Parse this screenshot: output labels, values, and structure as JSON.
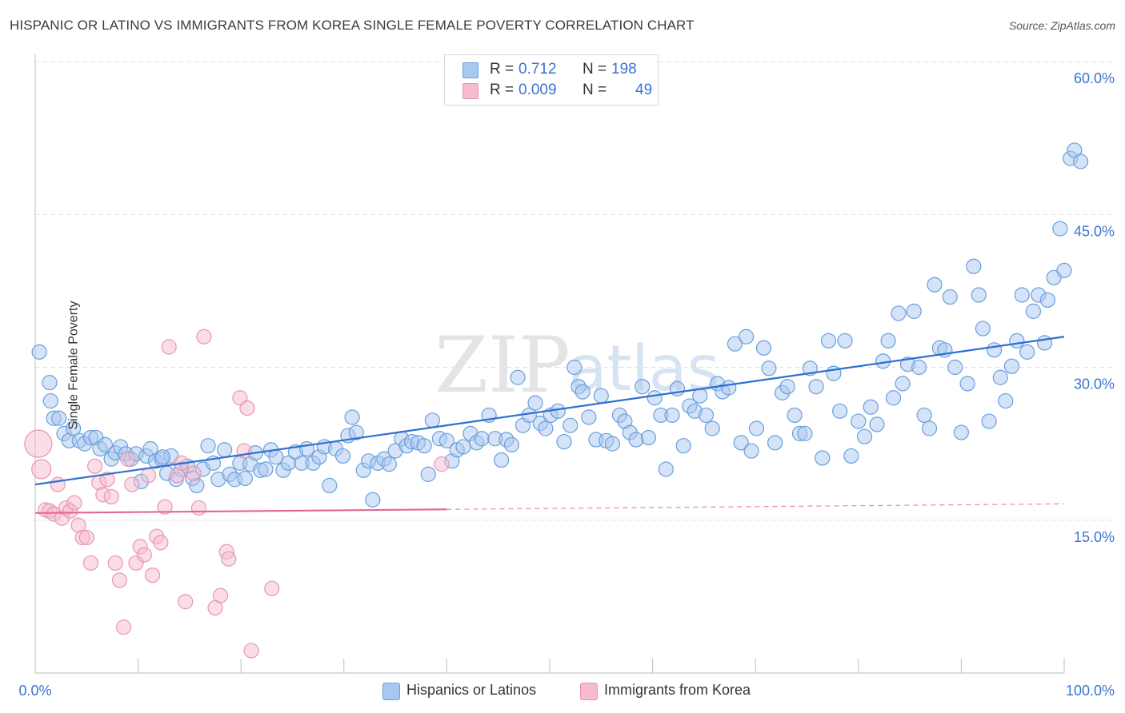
{
  "header": {
    "title": "HISPANIC OR LATINO VS IMMIGRANTS FROM KOREA SINGLE FEMALE POVERTY CORRELATION CHART",
    "source": "Source: ZipAtlas.com"
  },
  "watermark": {
    "zip": "ZIP",
    "atlas": "atlas"
  },
  "colors": {
    "blue_fill": "#a9c8ef",
    "blue_stroke": "#6a9fdc",
    "blue_line": "#2f6fd0",
    "pink_fill": "#f6bccd",
    "pink_stroke": "#e896b0",
    "pink_line": "#e5668f",
    "axis_text": "#3a74d0",
    "grid": "#dcdcdc"
  },
  "legend_top": {
    "rows": [
      {
        "r_label": "R =",
        "r_value": "0.712",
        "n_label": "N =",
        "n_value": "198"
      },
      {
        "r_label": "R =",
        "r_value": "0.009",
        "n_label": "N =",
        "n_value": "49"
      }
    ]
  },
  "legend_bottom": {
    "items": [
      {
        "label": "Hispanics or Latinos"
      },
      {
        "label": "Immigrants from Korea"
      }
    ]
  },
  "chart_data": {
    "type": "scatter",
    "title": "HISPANIC OR LATINO VS IMMIGRANTS FROM KOREA SINGLE FEMALE POVERTY CORRELATION CHART",
    "xlabel": "",
    "ylabel": "Single Female Poverty",
    "xlim": [
      0,
      100
    ],
    "ylim": [
      0,
      62
    ],
    "x_tick_labels": [
      "0.0%",
      "100.0%"
    ],
    "y_ticks": [
      15,
      30,
      45,
      60
    ],
    "y_tick_labels": [
      "15.0%",
      "30.0%",
      "45.0%",
      "60.0%"
    ],
    "grid": true,
    "series": [
      {
        "name": "Hispanics or Latinos",
        "R": 0.712,
        "N": 198,
        "trend": {
          "x": [
            0,
            100
          ],
          "y": [
            18.5,
            33.0
          ],
          "dashed_from": null
        },
        "points": [
          [
            0.4,
            31.5
          ],
          [
            1.4,
            28.5
          ],
          [
            1.5,
            26.7
          ],
          [
            1.8,
            25.0
          ],
          [
            2.3,
            25.0
          ],
          [
            2.8,
            23.5
          ],
          [
            3.3,
            22.8
          ],
          [
            3.7,
            24.0
          ],
          [
            4.3,
            22.8
          ],
          [
            4.8,
            22.5
          ],
          [
            5.4,
            23.1
          ],
          [
            5.9,
            23.1
          ],
          [
            6.3,
            22.0
          ],
          [
            6.8,
            22.4
          ],
          [
            7.4,
            21.0
          ],
          [
            7.8,
            21.6
          ],
          [
            8.3,
            22.2
          ],
          [
            8.8,
            21.5
          ],
          [
            9.3,
            21.0
          ],
          [
            9.8,
            21.5
          ],
          [
            10.3,
            18.8
          ],
          [
            10.8,
            21.3
          ],
          [
            11.2,
            22.0
          ],
          [
            11.7,
            20.8
          ],
          [
            12.3,
            21.0
          ],
          [
            12.8,
            19.6
          ],
          [
            13.2,
            21.3
          ],
          [
            13.7,
            19.0
          ],
          [
            14.2,
            20.0
          ],
          [
            14.8,
            20.3
          ],
          [
            15.3,
            19.1
          ],
          [
            15.7,
            18.4
          ],
          [
            16.3,
            20.0
          ],
          [
            16.8,
            22.3
          ],
          [
            17.3,
            20.6
          ],
          [
            17.8,
            19.0
          ],
          [
            18.4,
            21.9
          ],
          [
            18.9,
            19.5
          ],
          [
            19.4,
            19.0
          ],
          [
            19.9,
            20.6
          ],
          [
            20.4,
            19.1
          ],
          [
            20.9,
            20.5
          ],
          [
            21.4,
            21.6
          ],
          [
            21.9,
            19.9
          ],
          [
            22.4,
            20.0
          ],
          [
            22.9,
            21.9
          ],
          [
            23.4,
            21.2
          ],
          [
            24.1,
            19.9
          ],
          [
            24.6,
            20.6
          ],
          [
            25.3,
            21.7
          ],
          [
            25.9,
            20.6
          ],
          [
            26.4,
            22.0
          ],
          [
            27.0,
            20.6
          ],
          [
            27.6,
            21.2
          ],
          [
            28.1,
            22.2
          ],
          [
            28.6,
            18.4
          ],
          [
            29.2,
            22.0
          ],
          [
            29.9,
            21.3
          ],
          [
            30.4,
            23.3
          ],
          [
            30.8,
            25.1
          ],
          [
            31.2,
            23.6
          ],
          [
            31.9,
            19.9
          ],
          [
            32.4,
            20.8
          ],
          [
            32.8,
            17.0
          ],
          [
            33.3,
            20.6
          ],
          [
            33.9,
            21.0
          ],
          [
            34.4,
            20.5
          ],
          [
            35.0,
            21.8
          ],
          [
            35.6,
            23.0
          ],
          [
            36.1,
            22.3
          ],
          [
            36.6,
            22.7
          ],
          [
            37.2,
            22.6
          ],
          [
            37.8,
            22.3
          ],
          [
            38.2,
            19.5
          ],
          [
            38.6,
            24.8
          ],
          [
            39.3,
            23.0
          ],
          [
            40.0,
            22.8
          ],
          [
            40.5,
            20.8
          ],
          [
            41.0,
            21.9
          ],
          [
            41.6,
            22.2
          ],
          [
            42.3,
            23.5
          ],
          [
            42.9,
            22.6
          ],
          [
            43.4,
            23.0
          ],
          [
            44.1,
            25.3
          ],
          [
            44.7,
            23.0
          ],
          [
            45.3,
            20.9
          ],
          [
            45.8,
            22.9
          ],
          [
            46.3,
            22.4
          ],
          [
            46.9,
            29.0
          ],
          [
            47.4,
            24.3
          ],
          [
            48.0,
            25.3
          ],
          [
            48.6,
            26.5
          ],
          [
            49.1,
            24.5
          ],
          [
            49.6,
            24.0
          ],
          [
            50.1,
            25.3
          ],
          [
            50.8,
            25.7
          ],
          [
            51.4,
            22.7
          ],
          [
            52.0,
            24.3
          ],
          [
            52.4,
            30.0
          ],
          [
            52.8,
            28.1
          ],
          [
            53.2,
            27.6
          ],
          [
            53.8,
            25.1
          ],
          [
            54.5,
            22.9
          ],
          [
            55.0,
            27.2
          ],
          [
            55.5,
            22.8
          ],
          [
            56.1,
            22.5
          ],
          [
            56.8,
            25.3
          ],
          [
            57.3,
            24.7
          ],
          [
            57.8,
            23.6
          ],
          [
            58.4,
            22.9
          ],
          [
            59.0,
            28.1
          ],
          [
            59.6,
            23.1
          ],
          [
            60.2,
            27.0
          ],
          [
            60.8,
            25.3
          ],
          [
            61.3,
            20.0
          ],
          [
            61.9,
            25.3
          ],
          [
            62.4,
            27.9
          ],
          [
            63.0,
            22.3
          ],
          [
            63.6,
            26.2
          ],
          [
            64.1,
            25.7
          ],
          [
            64.6,
            27.2
          ],
          [
            65.2,
            25.3
          ],
          [
            65.8,
            24.0
          ],
          [
            66.3,
            28.4
          ],
          [
            66.8,
            27.6
          ],
          [
            67.4,
            28.0
          ],
          [
            68.0,
            32.3
          ],
          [
            68.6,
            22.6
          ],
          [
            69.1,
            33.0
          ],
          [
            69.6,
            21.8
          ],
          [
            70.1,
            24.0
          ],
          [
            70.8,
            31.9
          ],
          [
            71.3,
            29.9
          ],
          [
            71.9,
            22.6
          ],
          [
            72.6,
            27.5
          ],
          [
            73.1,
            28.1
          ],
          [
            73.8,
            25.3
          ],
          [
            74.3,
            23.5
          ],
          [
            74.8,
            23.5
          ],
          [
            75.3,
            29.9
          ],
          [
            75.9,
            28.1
          ],
          [
            76.5,
            21.1
          ],
          [
            77.1,
            32.6
          ],
          [
            77.6,
            29.4
          ],
          [
            78.2,
            25.7
          ],
          [
            78.7,
            32.6
          ],
          [
            79.3,
            21.3
          ],
          [
            80.0,
            24.7
          ],
          [
            80.6,
            23.2
          ],
          [
            81.2,
            26.1
          ],
          [
            81.8,
            24.4
          ],
          [
            82.4,
            30.6
          ],
          [
            82.9,
            32.6
          ],
          [
            83.4,
            27.0
          ],
          [
            83.9,
            35.3
          ],
          [
            84.3,
            28.4
          ],
          [
            84.8,
            30.3
          ],
          [
            85.4,
            35.5
          ],
          [
            85.9,
            30.0
          ],
          [
            86.4,
            25.3
          ],
          [
            86.9,
            24.0
          ],
          [
            87.4,
            38.1
          ],
          [
            87.9,
            31.9
          ],
          [
            88.4,
            31.7
          ],
          [
            88.9,
            36.9
          ],
          [
            89.4,
            30.0
          ],
          [
            90.0,
            23.6
          ],
          [
            90.6,
            28.4
          ],
          [
            91.2,
            39.9
          ],
          [
            91.7,
            37.1
          ],
          [
            92.1,
            33.8
          ],
          [
            92.7,
            24.7
          ],
          [
            93.2,
            31.7
          ],
          [
            93.8,
            29.0
          ],
          [
            94.3,
            26.7
          ],
          [
            94.9,
            30.1
          ],
          [
            95.4,
            32.6
          ],
          [
            95.9,
            37.1
          ],
          [
            96.4,
            31.5
          ],
          [
            97.0,
            35.5
          ],
          [
            97.5,
            37.1
          ],
          [
            98.1,
            32.4
          ],
          [
            98.4,
            36.6
          ],
          [
            99.0,
            38.8
          ],
          [
            99.6,
            43.6
          ],
          [
            100.0,
            39.5
          ],
          [
            100.6,
            50.5
          ],
          [
            101.0,
            51.3
          ],
          [
            101.6,
            50.2
          ],
          [
            12.4,
            21.2
          ]
        ]
      },
      {
        "name": "Immigrants from Korea",
        "R": 0.009,
        "N": 49,
        "trend": {
          "x": [
            0,
            100
          ],
          "y": [
            15.7,
            16.6
          ],
          "dashed_from": 40
        },
        "points": [
          [
            0.3,
            22.5
          ],
          [
            0.6,
            20.0
          ],
          [
            1.0,
            16.0
          ],
          [
            1.4,
            15.9
          ],
          [
            1.8,
            15.6
          ],
          [
            2.2,
            18.5
          ],
          [
            2.6,
            15.2
          ],
          [
            3.0,
            16.2
          ],
          [
            3.4,
            15.9
          ],
          [
            3.8,
            16.7
          ],
          [
            4.2,
            14.5
          ],
          [
            4.6,
            13.3
          ],
          [
            5.0,
            13.3
          ],
          [
            5.4,
            10.8
          ],
          [
            5.8,
            20.3
          ],
          [
            6.2,
            18.7
          ],
          [
            6.6,
            17.5
          ],
          [
            7.0,
            19.0
          ],
          [
            7.4,
            17.3
          ],
          [
            7.8,
            10.8
          ],
          [
            8.2,
            9.1
          ],
          [
            8.6,
            4.5
          ],
          [
            9.0,
            21.0
          ],
          [
            9.4,
            18.5
          ],
          [
            9.8,
            10.8
          ],
          [
            10.2,
            12.4
          ],
          [
            10.6,
            11.6
          ],
          [
            11.0,
            19.4
          ],
          [
            11.4,
            9.6
          ],
          [
            11.8,
            13.4
          ],
          [
            12.2,
            12.8
          ],
          [
            12.6,
            16.3
          ],
          [
            13.0,
            32.0
          ],
          [
            13.8,
            19.4
          ],
          [
            14.2,
            20.6
          ],
          [
            14.6,
            7.0
          ],
          [
            15.4,
            19.6
          ],
          [
            15.9,
            16.2
          ],
          [
            16.4,
            33.0
          ],
          [
            17.5,
            6.4
          ],
          [
            18.0,
            7.6
          ],
          [
            18.6,
            11.9
          ],
          [
            18.8,
            11.2
          ],
          [
            19.9,
            27.0
          ],
          [
            20.3,
            21.8
          ],
          [
            20.6,
            26.0
          ],
          [
            21.0,
            2.2
          ],
          [
            23.0,
            8.3
          ],
          [
            39.5,
            20.5
          ]
        ]
      }
    ]
  }
}
